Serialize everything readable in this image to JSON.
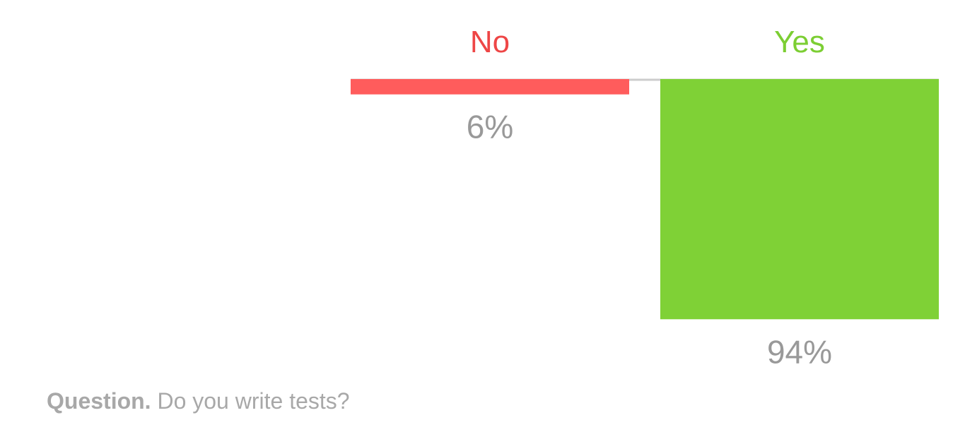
{
  "chart_data": {
    "type": "bar",
    "categories": [
      "No",
      "Yes"
    ],
    "values": [
      6,
      94
    ],
    "value_labels": [
      "6%",
      "94%"
    ],
    "unit": "%",
    "ylim": [
      0,
      100
    ],
    "colors": [
      "#ff5c5c",
      "#7fd136"
    ],
    "category_label_colors": [
      "#ee4646",
      "#7cce33"
    ],
    "value_label_color": "#999999",
    "baseline_color": "#cccccc",
    "orientation": "hanging-from-top",
    "grid": false,
    "legend": "none"
  },
  "question": {
    "label": "Question.",
    "text": "Do you write tests?"
  }
}
